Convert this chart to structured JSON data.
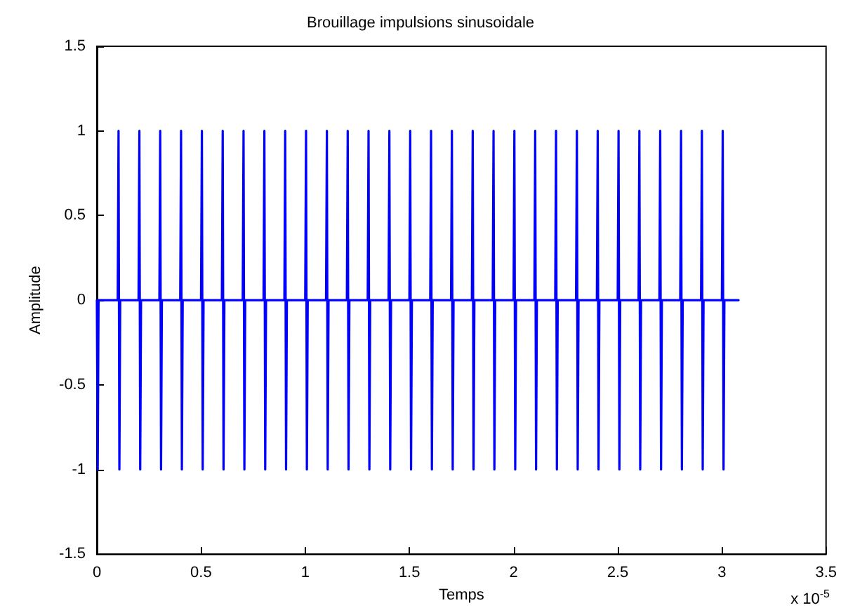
{
  "chart_data": {
    "type": "line",
    "title": "Brouillage impulsions sinusoidale",
    "xlabel": "Temps",
    "ylabel": "Amplitude",
    "annotations": [
      "x 10$^{-5}$"
    ],
    "x": [
      0,
      0.004,
      0.008,
      0.1,
      0.104,
      0.108,
      0.112,
      0.2,
      0.204,
      0.208,
      0.212,
      0.3,
      0.304,
      0.308,
      0.312,
      0.4,
      0.404,
      0.408,
      0.412,
      0.5,
      0.504,
      0.508,
      0.512,
      0.6,
      0.604,
      0.608,
      0.612,
      0.7,
      0.704,
      0.708,
      0.712,
      0.8,
      0.804,
      0.808,
      0.812,
      0.9,
      0.904,
      0.908,
      0.912,
      1.0,
      1.004,
      1.008,
      1.012,
      1.1,
      1.104,
      1.108,
      1.112,
      1.2,
      1.204,
      1.208,
      1.212,
      1.3,
      1.304,
      1.308,
      1.312,
      1.4,
      1.404,
      1.408,
      1.412,
      1.5,
      1.504,
      1.508,
      1.512,
      1.6,
      1.604,
      1.608,
      1.612,
      1.7,
      1.704,
      1.708,
      1.712,
      1.8,
      1.804,
      1.808,
      1.812,
      1.9,
      1.904,
      1.908,
      1.912,
      2.0,
      2.004,
      2.008,
      2.012,
      2.1,
      2.104,
      2.108,
      2.112,
      2.2,
      2.204,
      2.208,
      2.212,
      2.3,
      2.304,
      2.308,
      2.312,
      2.4,
      2.404,
      2.408,
      2.412,
      2.5,
      2.504,
      2.508,
      2.512,
      2.6,
      2.604,
      2.608,
      2.612,
      2.7,
      2.704,
      2.708,
      2.712,
      2.8,
      2.804,
      2.808,
      2.812,
      2.9,
      2.904,
      2.908,
      2.912,
      3.0,
      3.004,
      3.008,
      3.012,
      3.08
    ],
    "series": [
      {
        "color": "#0000ff",
        "values": [
          0,
          -1,
          0,
          0,
          1,
          -1,
          0,
          0,
          1,
          -1,
          0,
          0,
          1,
          -1,
          0,
          0,
          1,
          -1,
          0,
          0,
          1,
          -1,
          0,
          0,
          1,
          -1,
          0,
          0,
          1,
          -1,
          0,
          0,
          1,
          -1,
          0,
          0,
          1,
          -1,
          0,
          0,
          1,
          -1,
          0,
          0,
          1,
          -1,
          0,
          0,
          1,
          -1,
          0,
          0,
          1,
          -1,
          0,
          0,
          1,
          -1,
          0,
          0,
          1,
          -1,
          0,
          0,
          1,
          -1,
          0,
          0,
          1,
          -1,
          0,
          0,
          1,
          -1,
          0,
          0,
          1,
          -1,
          0,
          0,
          1,
          -1,
          0,
          0,
          1,
          -1,
          0,
          0,
          1,
          -1,
          0,
          0,
          1,
          -1,
          0,
          0,
          1,
          -1,
          0,
          0,
          1,
          -1,
          0,
          0,
          1,
          -1,
          0,
          0,
          1,
          -1,
          0,
          0,
          1,
          -1,
          0,
          0,
          1,
          -1,
          0,
          0,
          1,
          -1,
          0,
          0
        ]
      }
    ],
    "xlim": [
      0,
      3.5
    ],
    "xticks": [
      0,
      0.5,
      1,
      1.5,
      2,
      2.5,
      3,
      3.5
    ],
    "ylim": [
      -1.5,
      1.5
    ],
    "yticks": [
      -1.5,
      -1,
      -0.5,
      0,
      0.5,
      1,
      1.5
    ],
    "grid": false,
    "legend": false,
    "marker": "none",
    "line_style": "solid"
  }
}
